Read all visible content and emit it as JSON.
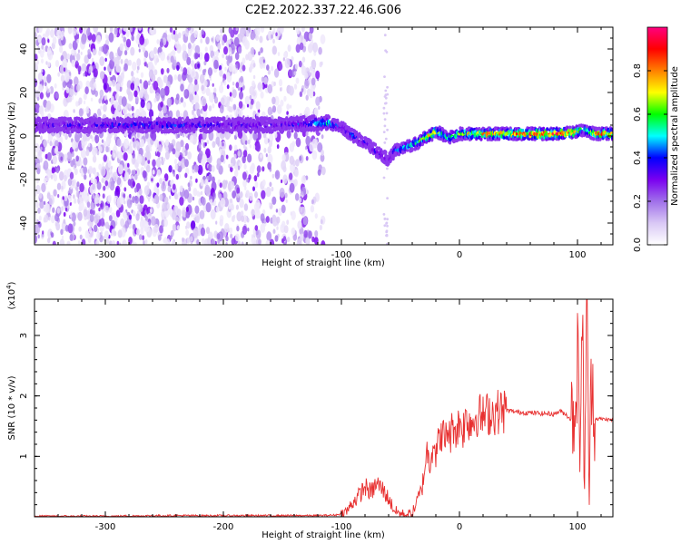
{
  "title": "C2E2.2022.337.22.46.G06",
  "chart_data": [
    {
      "type": "heatmap",
      "xlabel": "Height of straight line (km)",
      "ylabel": "Frequency (Hz)",
      "xlim": [
        -360,
        130
      ],
      "ylim": [
        -50,
        50
      ],
      "xticks": [
        -300,
        -200,
        -100,
        0,
        100
      ],
      "yticks": [
        -40,
        -20,
        0,
        20,
        40
      ],
      "grid": false,
      "colorbar": {
        "label": "Normalized spectral amplitude",
        "range": [
          0.0,
          1.0
        ],
        "ticks": [
          "0.0",
          "0.2",
          "0.4",
          "0.6",
          "0.8"
        ],
        "colormap": [
          "#ffffff",
          "#d9c8f5",
          "#a070ea",
          "#7a00f0",
          "#0000ff",
          "#00ffff",
          "#00ff00",
          "#ffff00",
          "#ff8000",
          "#ff0000",
          "#ff0080"
        ]
      },
      "ridge": {
        "x": [
          -360,
          -300,
          -250,
          -200,
          -150,
          -120,
          -110,
          -100,
          -90,
          -80,
          -75,
          -70,
          -65,
          -60,
          -55,
          -50,
          -45,
          -40,
          -35,
          -30,
          -25,
          -20,
          -15,
          -10,
          -5,
          0,
          10,
          20,
          40,
          60,
          80,
          95,
          100,
          105,
          110,
          115,
          120,
          130
        ],
        "y": [
          5,
          5,
          5,
          5,
          5,
          6,
          6,
          4,
          0,
          -3,
          -5,
          -7,
          -9,
          -11,
          -7,
          -6,
          -5,
          -4,
          -3,
          -1,
          0,
          2,
          1,
          -1,
          0,
          1,
          1,
          1,
          1,
          1,
          1,
          1.5,
          2,
          3,
          2,
          1,
          1,
          1
        ],
        "amplitude": [
          0.3,
          0.35,
          0.4,
          0.35,
          0.3,
          0.45,
          0.5,
          0.35,
          0.4,
          0.35,
          0.3,
          0.4,
          0.35,
          0.25,
          0.4,
          0.45,
          0.5,
          0.5,
          0.55,
          0.65,
          0.75,
          0.7,
          0.6,
          0.5,
          0.55,
          0.6,
          0.7,
          0.75,
          0.8,
          0.85,
          0.9,
          0.85,
          0.7,
          0.5,
          0.6,
          0.75,
          0.8,
          0.85
        ]
      }
    },
    {
      "type": "line",
      "xlabel": "Height of straight line (km)",
      "ylabel": "SNR (10 * v/v)",
      "yunit": "(x10",
      "yunit_exponent": "4",
      "yunit_close": ")",
      "xlim": [
        -360,
        130
      ],
      "ylim": [
        0,
        3.6
      ],
      "xticks": [
        -300,
        -200,
        -100,
        0,
        100
      ],
      "yticks": [
        1,
        2,
        3
      ],
      "grid": false,
      "color": "#e83030",
      "series": [
        {
          "x": [
            -360,
            -300,
            -250,
            -200,
            -150,
            -120,
            -105,
            -100,
            -95,
            -90,
            -85,
            -80,
            -75,
            -70,
            -65,
            -60,
            -55,
            -50,
            -45,
            -40,
            -38,
            -35,
            -32,
            -30,
            -28,
            -25,
            -22,
            -20,
            -18,
            -15,
            -12,
            -10,
            -8,
            -5,
            -2,
            0,
            3,
            6,
            10,
            15,
            20,
            25,
            30,
            35,
            40,
            50,
            60,
            70,
            80,
            85,
            90,
            95,
            98,
            100,
            102,
            104,
            106,
            108,
            110,
            112,
            115,
            120,
            130
          ],
          "y": [
            0.01,
            0.01,
            0.02,
            0.02,
            0.02,
            0.02,
            0.03,
            0.05,
            0.1,
            0.25,
            0.35,
            0.5,
            0.4,
            0.55,
            0.45,
            0.3,
            0.1,
            0.05,
            0.03,
            0.05,
            0.15,
            0.3,
            0.45,
            0.7,
            1.1,
            0.9,
            1.3,
            1.05,
            1.2,
            1.4,
            1.25,
            1.5,
            1.3,
            1.55,
            1.4,
            1.6,
            1.45,
            1.65,
            1.55,
            1.7,
            1.65,
            1.72,
            1.73,
            1.75,
            1.76,
            1.73,
            1.72,
            1.71,
            1.7,
            1.75,
            1.7,
            1.6,
            1.9,
            2.6,
            1.4,
            3.1,
            0.9,
            3.4,
            0.5,
            2.4,
            1.62,
            1.62,
            1.6
          ]
        }
      ]
    }
  ]
}
